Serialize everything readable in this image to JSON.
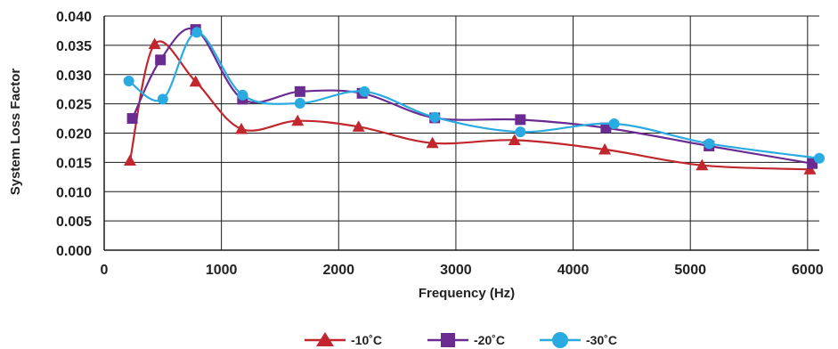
{
  "chart_data": {
    "type": "line",
    "title": "",
    "xlabel": "Frequency (Hz)",
    "ylabel": "System Loss Factor",
    "xlim": [
      0,
      6100
    ],
    "ylim": [
      0,
      0.04
    ],
    "x_ticks": [
      "0",
      "1000",
      "2000",
      "3000",
      "4000",
      "5000",
      "6000"
    ],
    "y_ticks": [
      "0.000",
      "0.005",
      "0.010",
      "0.015",
      "0.020",
      "0.025",
      "0.030",
      "0.035",
      "0.040"
    ],
    "grid": true,
    "legend_position": "bottom",
    "series": [
      {
        "name": "-10˚C",
        "color": "#c1272d",
        "marker": "triangle",
        "points": [
          {
            "x": 220,
            "y": 0.0153
          },
          {
            "x": 430,
            "y": 0.0352
          },
          {
            "x": 780,
            "y": 0.0288
          },
          {
            "x": 1170,
            "y": 0.0207
          },
          {
            "x": 1650,
            "y": 0.0221
          },
          {
            "x": 2170,
            "y": 0.0211
          },
          {
            "x": 2800,
            "y": 0.0183
          },
          {
            "x": 3500,
            "y": 0.0188
          },
          {
            "x": 4270,
            "y": 0.0172
          },
          {
            "x": 5100,
            "y": 0.0145
          },
          {
            "x": 6020,
            "y": 0.0138
          }
        ]
      },
      {
        "name": "-20˚C",
        "color": "#6a2c91",
        "marker": "square",
        "points": [
          {
            "x": 240,
            "y": 0.0225
          },
          {
            "x": 480,
            "y": 0.0325
          },
          {
            "x": 780,
            "y": 0.0377
          },
          {
            "x": 1180,
            "y": 0.0258
          },
          {
            "x": 1670,
            "y": 0.0271
          },
          {
            "x": 2200,
            "y": 0.0268
          },
          {
            "x": 2820,
            "y": 0.0226
          },
          {
            "x": 3550,
            "y": 0.0223
          },
          {
            "x": 4280,
            "y": 0.0209
          },
          {
            "x": 5160,
            "y": 0.0178
          },
          {
            "x": 6040,
            "y": 0.0148
          }
        ]
      },
      {
        "name": "-30˚C",
        "color": "#29abe2",
        "marker": "circle",
        "points": [
          {
            "x": 210,
            "y": 0.0289
          },
          {
            "x": 500,
            "y": 0.0258
          },
          {
            "x": 790,
            "y": 0.0372
          },
          {
            "x": 1180,
            "y": 0.0265
          },
          {
            "x": 1670,
            "y": 0.0251
          },
          {
            "x": 2220,
            "y": 0.0271
          },
          {
            "x": 2820,
            "y": 0.0227
          },
          {
            "x": 3550,
            "y": 0.0202
          },
          {
            "x": 4350,
            "y": 0.0216
          },
          {
            "x": 5160,
            "y": 0.0182
          },
          {
            "x": 6100,
            "y": 0.0157
          }
        ]
      }
    ]
  }
}
